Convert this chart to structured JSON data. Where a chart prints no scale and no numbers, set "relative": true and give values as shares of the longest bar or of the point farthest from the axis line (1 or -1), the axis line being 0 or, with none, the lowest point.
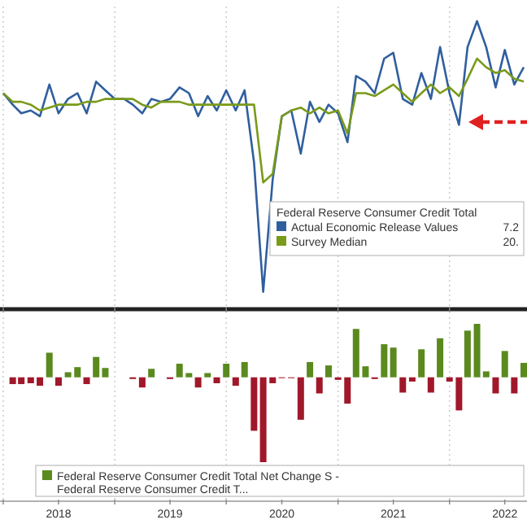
{
  "chart_data": [
    {
      "type": "line",
      "relative": true,
      "legend": "bottom right",
      "legend_title": "Federal Reserve Consumer Credit Total",
      "annotations": [
        "7.2",
        "20."
      ],
      "grid": "x",
      "tick_labels": false,
      "xlim": [
        "2018-01",
        "2022-09"
      ],
      "xticks": [
        {
          "value": "2018-01",
          "label": null
        },
        {
          "value": "2019-01",
          "label": null
        },
        {
          "value": "2020-01",
          "label": null
        },
        {
          "value": "2021-01",
          "label": null
        },
        {
          "value": "2022-01",
          "label": null
        }
      ],
      "x": [
        "2018-01",
        "2018-02",
        "2018-03",
        "2018-04",
        "2018-05",
        "2018-06",
        "2018-07",
        "2018-08",
        "2018-09",
        "2018-10",
        "2018-11",
        "2018-12",
        "2019-01",
        "2019-02",
        "2019-03",
        "2019-04",
        "2019-05",
        "2019-06",
        "2019-07",
        "2019-08",
        "2019-09",
        "2019-10",
        "2019-11",
        "2019-12",
        "2020-01",
        "2020-02",
        "2020-03",
        "2020-04",
        "2020-05",
        "2020-06",
        "2020-07",
        "2020-08",
        "2020-09",
        "2020-10",
        "2020-11",
        "2020-12",
        "2021-01",
        "2021-02",
        "2021-03",
        "2021-04",
        "2021-05",
        "2021-06",
        "2021-07",
        "2021-08",
        "2021-09",
        "2021-10",
        "2021-11",
        "2021-12",
        "2022-01",
        "2022-02",
        "2022-03",
        "2022-04",
        "2022-05",
        "2022-06",
        "2022-07",
        "2022-08",
        "2022-09"
      ],
      "series": [
        {
          "name": "Actual Economic Release Values",
          "color": "#2f5f9e",
          "values": [
            0.75,
            0.71,
            0.68,
            0.69,
            0.67,
            0.78,
            0.68,
            0.73,
            0.75,
            0.68,
            0.79,
            0.76,
            0.73,
            0.73,
            0.71,
            0.68,
            0.73,
            0.72,
            0.73,
            0.77,
            0.75,
            0.67,
            0.74,
            0.69,
            0.76,
            0.69,
            0.76,
            0.51,
            0.06,
            0.45,
            0.67,
            0.69,
            0.54,
            0.72,
            0.65,
            0.71,
            0.68,
            0.58,
            0.81,
            0.79,
            0.75,
            0.87,
            0.89,
            0.73,
            0.71,
            0.82,
            0.73,
            0.91,
            0.75,
            0.64,
            0.91,
            1,
            0.91,
            0.77,
            0.9,
            0.78,
            0.84
          ]
        },
        {
          "name": "Survey Median",
          "color": "#7a9a1a",
          "values": [
            0.75,
            0.72,
            0.72,
            0.71,
            0.69,
            0.7,
            0.71,
            0.71,
            0.71,
            0.72,
            0.72,
            0.73,
            0.73,
            0.73,
            0.73,
            0.71,
            0.7,
            0.72,
            0.72,
            0.72,
            0.71,
            0.71,
            0.71,
            0.71,
            0.71,
            0.71,
            0.71,
            0.71,
            0.44,
            0.47,
            0.67,
            0.69,
            0.7,
            0.68,
            0.7,
            0.68,
            0.69,
            0.61,
            0.75,
            0.75,
            0.74,
            0.76,
            0.78,
            0.75,
            0.72,
            0.75,
            0.78,
            0.75,
            0.77,
            0.74,
            0.8,
            0.87,
            0.84,
            0.82,
            0.83,
            0.8,
            0.79
          ]
        }
      ]
    },
    {
      "type": "bar",
      "relative": true,
      "legend": "bottom",
      "grid": "x",
      "tick_labels": "x",
      "xlim": [
        "2018-01",
        "2022-09"
      ],
      "xticks": [
        {
          "value": "2018-01",
          "label": null
        },
        {
          "value": "2018-07",
          "label": "2018"
        },
        {
          "value": "2019-01",
          "label": null
        },
        {
          "value": "2019-07",
          "label": "2019"
        },
        {
          "value": "2020-01",
          "label": null
        },
        {
          "value": "2020-07",
          "label": "2020"
        },
        {
          "value": "2021-01",
          "label": null
        },
        {
          "value": "2021-07",
          "label": "2021"
        },
        {
          "value": "2022-01",
          "label": null
        },
        {
          "value": "2022-07",
          "label": "2022"
        }
      ],
      "x": [
        "2018-02",
        "2018-03",
        "2018-04",
        "2018-05",
        "2018-06",
        "2018-07",
        "2018-08",
        "2018-09",
        "2018-10",
        "2018-11",
        "2018-12",
        "2019-01",
        "2019-02",
        "2019-03",
        "2019-04",
        "2019-05",
        "2019-06",
        "2019-07",
        "2019-08",
        "2019-09",
        "2019-10",
        "2019-11",
        "2019-12",
        "2020-01",
        "2020-02",
        "2020-03",
        "2020-04",
        "2020-05",
        "2020-06",
        "2020-07",
        "2020-08",
        "2020-09",
        "2020-10",
        "2020-11",
        "2020-12",
        "2021-01",
        "2021-02",
        "2021-03",
        "2021-04",
        "2021-05",
        "2021-06",
        "2021-07",
        "2021-08",
        "2021-09",
        "2021-10",
        "2021-11",
        "2021-12",
        "2022-01",
        "2022-02",
        "2022-03",
        "2022-04",
        "2022-05",
        "2022-06",
        "2022-07",
        "2022-08",
        "2022-09"
      ],
      "series": [
        {
          "name": "Federal Reserve Consumer Credit Total Net Change S - Federal Reserve Consumer Credit T...",
          "color": "#5a8a1e",
          "values": [
            null,
            null,
            null,
            null,
            0.29,
            null,
            0.06,
            0.12,
            null,
            0.24,
            0.11,
            null,
            null,
            null,
            null,
            0.1,
            null,
            null,
            0.16,
            0.05,
            null,
            0.05,
            null,
            0.16,
            null,
            0.18,
            null,
            null,
            null,
            null,
            null,
            null,
            0.18,
            null,
            0.14,
            null,
            null,
            0.57,
            0.13,
            null,
            0.39,
            0.35,
            null,
            null,
            0.33,
            null,
            0.46,
            null,
            null,
            0.55,
            0.63,
            0.07,
            null,
            0.31,
            null,
            0.17
          ]
        },
        {
          "color": "#a0182a",
          "values": [
            -0.08,
            -0.08,
            -0.07,
            -0.1,
            null,
            -0.1,
            null,
            null,
            -0.08,
            null,
            null,
            null,
            null,
            -0.02,
            -0.12,
            null,
            null,
            -0.02,
            null,
            null,
            -0.12,
            null,
            -0.07,
            null,
            -0.1,
            null,
            -0.63,
            -1,
            -0.07,
            -0.01,
            -0.01,
            -0.5,
            null,
            -0.19,
            null,
            -0.03,
            -0.31,
            null,
            null,
            -0.02,
            null,
            null,
            -0.18,
            -0.05,
            null,
            -0.18,
            null,
            -0.05,
            -0.39,
            null,
            null,
            null,
            -0.19,
            null,
            -0.19,
            null
          ]
        }
      ]
    }
  ]
}
